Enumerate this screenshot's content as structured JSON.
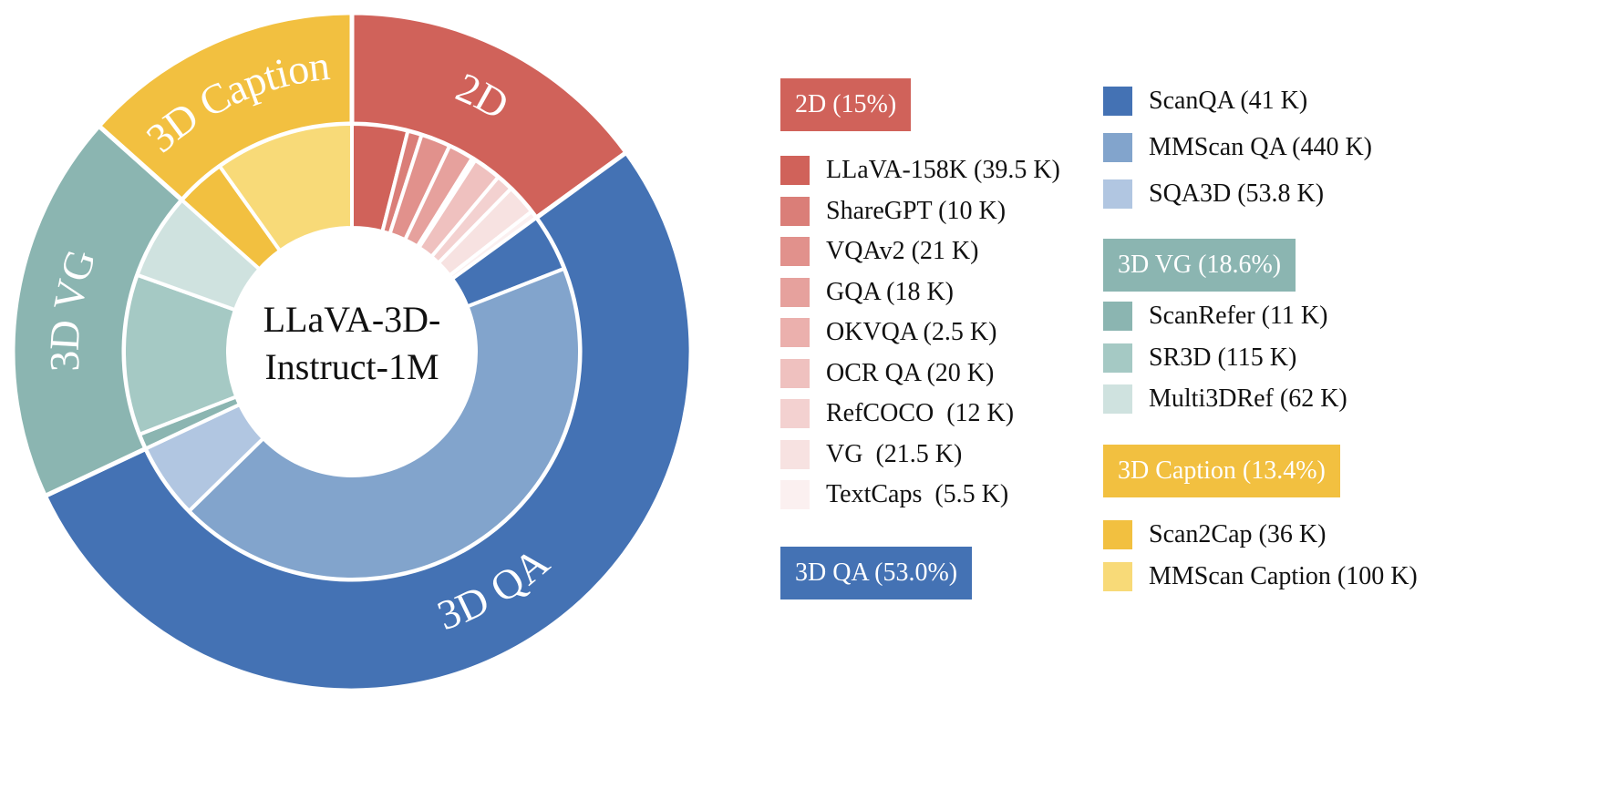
{
  "chart_data": {
    "type": "pie",
    "variant": "nested-donut",
    "center_label": [
      "LLaVA-3D-",
      "Instruct-1M"
    ],
    "groups": [
      {
        "name": "2D",
        "header": "2D (15%)",
        "ring_label": "2D",
        "percent": 15.0,
        "color": "#d0625a",
        "items": [
          {
            "label": "LLaVA-158K (39.5 K)",
            "value": 39.5,
            "color": "#d0625a"
          },
          {
            "label": "ShareGPT (10 K)",
            "value": 10,
            "color": "#da7e78"
          },
          {
            "label": "VQAv2 (21 K)",
            "value": 21,
            "color": "#e1918c"
          },
          {
            "label": "GQA (18 K)",
            "value": 18,
            "color": "#e6a19d"
          },
          {
            "label": "OKVQA (2.5 K)",
            "value": 2.5,
            "color": "#ebb0ad"
          },
          {
            "label": "OCR QA (20 K)",
            "value": 20,
            "color": "#efc1bf"
          },
          {
            "label": "RefCOCO  (12 K)",
            "value": 12,
            "color": "#f3d1d0"
          },
          {
            "label": "VG  (21.5 K)",
            "value": 21.5,
            "color": "#f7e2e1"
          },
          {
            "label": "TextCaps  (5.5 K)",
            "value": 5.5,
            "color": "#fbf0f0"
          }
        ]
      },
      {
        "name": "3D QA",
        "header": "3D QA (53.0%)",
        "ring_label": "3D QA",
        "percent": 53.0,
        "color": "#4472b4",
        "items": [
          {
            "label": "ScanQA (41 K)",
            "value": 41,
            "color": "#4472b4"
          },
          {
            "label": "MMScan QA (440 K)",
            "value": 440,
            "color": "#82a4cc"
          },
          {
            "label": "SQA3D (53.8 K)",
            "value": 53.8,
            "color": "#b1c6e1"
          }
        ]
      },
      {
        "name": "3D VG",
        "header": "3D VG (18.6%)",
        "ring_label": "3D VG",
        "percent": 18.6,
        "color": "#8bb5b1",
        "items": [
          {
            "label": "ScanRefer (11 K)",
            "value": 11,
            "color": "#8bb5b1"
          },
          {
            "label": "SR3D (115 K)",
            "value": 115,
            "color": "#a5c9c4"
          },
          {
            "label": "Multi3DRef (62 K)",
            "value": 62,
            "color": "#cfe2df"
          }
        ]
      },
      {
        "name": "3D Caption",
        "header": "3D Caption (13.4%)",
        "ring_label": "3D Caption",
        "percent": 13.4,
        "color": "#f2c040",
        "items": [
          {
            "label": "Scan2Cap (36 K)",
            "value": 36,
            "color": "#f2c040"
          },
          {
            "label": "MMScan Caption (100 K)",
            "value": 100,
            "color": "#f8da78"
          }
        ]
      }
    ]
  }
}
